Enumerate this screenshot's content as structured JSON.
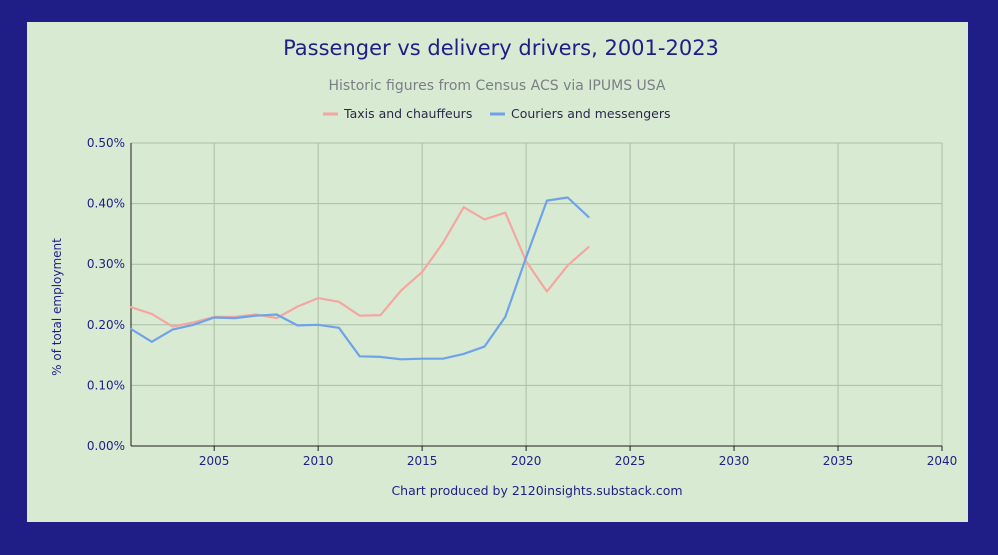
{
  "chart_data": {
    "type": "line",
    "title": "Passenger vs delivery drivers, 2001-2023",
    "subtitle": "Historic figures from Census ACS via IPUMS USA",
    "xlabel": "",
    "ylabel": "% of total employment",
    "footer": "Chart produced by 2120insights.substack.com",
    "xlim": [
      2001,
      2040
    ],
    "ylim": [
      0,
      0.5
    ],
    "x_ticks": [
      2005,
      2010,
      2015,
      2020,
      2025,
      2030,
      2035,
      2040
    ],
    "x_tick_labels": [
      "2005",
      "2010",
      "2015",
      "2020",
      "2025",
      "2030",
      "2035",
      "2040"
    ],
    "y_ticks": [
      0,
      0.1,
      0.2,
      0.3,
      0.4,
      0.5
    ],
    "y_tick_labels": [
      "0.00%",
      "0.10%",
      "0.20%",
      "0.30%",
      "0.40%",
      "0.50%"
    ],
    "grid": true,
    "legend_position": "top-center",
    "x": [
      2001,
      2002,
      2003,
      2004,
      2005,
      2006,
      2007,
      2008,
      2009,
      2010,
      2011,
      2012,
      2013,
      2014,
      2015,
      2016,
      2017,
      2018,
      2019,
      2020,
      2021,
      2022,
      2023
    ],
    "series": [
      {
        "name": "Taxis and chauffeurs",
        "color": "#f4a6a0",
        "values": [
          0.229,
          0.218,
          0.197,
          0.204,
          0.213,
          0.213,
          0.217,
          0.211,
          0.23,
          0.244,
          0.238,
          0.215,
          0.216,
          0.257,
          0.287,
          0.335,
          0.394,
          0.374,
          0.385,
          0.305,
          0.255,
          0.298,
          0.328
        ]
      },
      {
        "name": "Couriers and messengers",
        "color": "#6fa3e8",
        "values": [
          0.193,
          0.172,
          0.192,
          0.2,
          0.212,
          0.211,
          0.215,
          0.217,
          0.199,
          0.2,
          0.195,
          0.148,
          0.147,
          0.143,
          0.144,
          0.144,
          0.152,
          0.164,
          0.213,
          0.311,
          0.405,
          0.41,
          0.378
        ]
      }
    ]
  }
}
